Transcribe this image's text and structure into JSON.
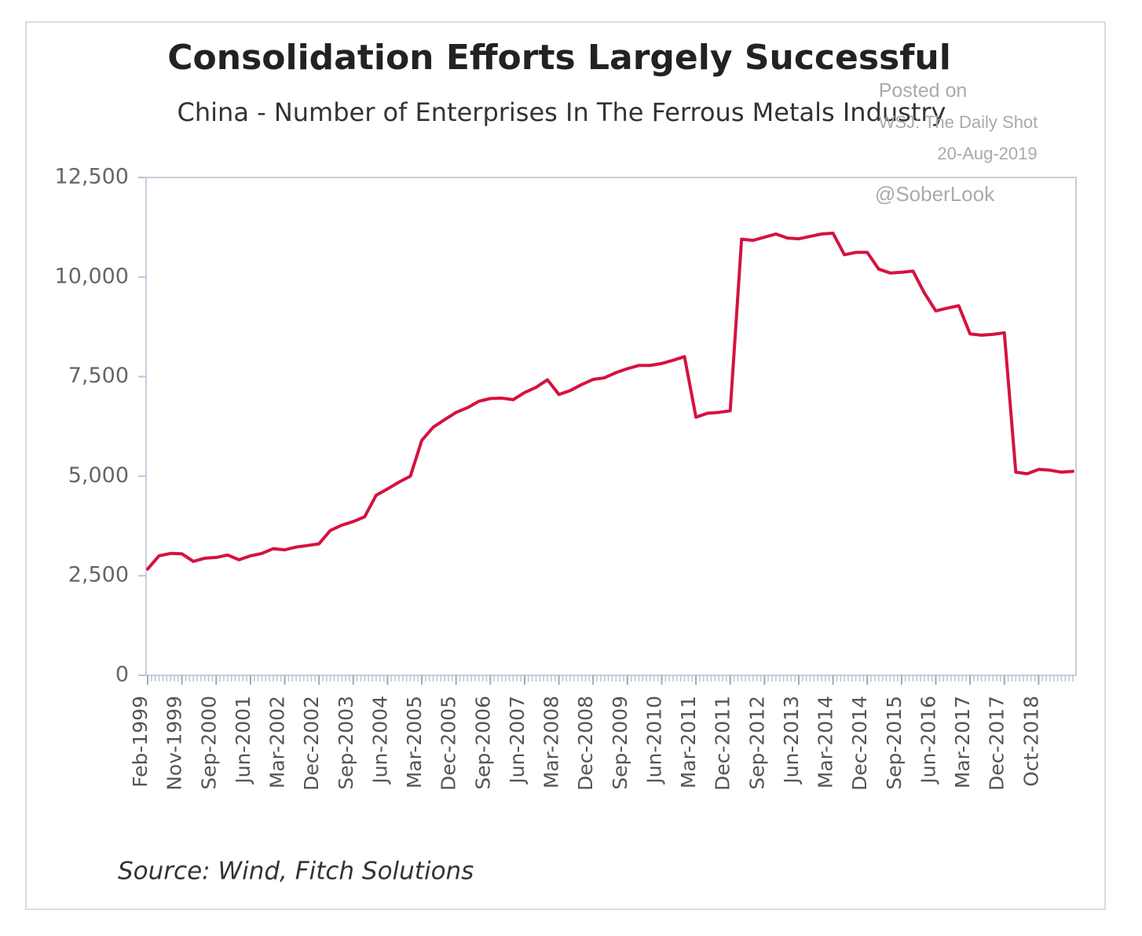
{
  "chart_data": {
    "type": "line",
    "title": "Consolidation Efforts Largely Successful",
    "subtitle": "China - Number of Enterprises In The Ferrous Metals Industry",
    "source": "Source: Wind, Fitch Solutions",
    "annotations": [
      "Posted on",
      "WSJ: The Daily Shot",
      "20-Aug-2019",
      "@SoberLook"
    ],
    "categories": [
      "Feb-1999",
      null,
      null,
      "Nov-1999",
      null,
      null,
      "Sep-2000",
      null,
      null,
      "Jun-2001",
      null,
      null,
      "Mar-2002",
      null,
      null,
      "Dec-2002",
      null,
      null,
      "Sep-2003",
      null,
      null,
      "Jun-2004",
      null,
      null,
      "Mar-2005",
      null,
      null,
      "Dec-2005",
      null,
      null,
      "Sep-2006",
      null,
      null,
      "Jun-2007",
      null,
      null,
      "Mar-2008",
      null,
      null,
      "Dec-2008",
      null,
      null,
      "Sep-2009",
      null,
      null,
      "Jun-2010",
      null,
      null,
      "Mar-2011",
      null,
      null,
      "Dec-2011",
      null,
      null,
      "Sep-2012",
      null,
      null,
      "Jun-2013",
      null,
      null,
      "Mar-2014",
      null,
      null,
      "Dec-2014",
      null,
      null,
      "Sep-2015",
      null,
      null,
      "Jun-2016",
      null,
      null,
      "Mar-2017",
      null,
      null,
      "Dec-2017",
      null,
      null,
      "Oct-2018",
      null,
      null,
      null
    ],
    "series": [
      {
        "name": "Number of Enterprises",
        "color": "#d5123f",
        "values": [
          2670,
          3000,
          3060,
          3050,
          2860,
          2940,
          2960,
          3020,
          2900,
          3000,
          3060,
          3180,
          3150,
          3220,
          3260,
          3300,
          3640,
          3770,
          3860,
          3980,
          4520,
          4680,
          4850,
          5000,
          5900,
          6230,
          6420,
          6600,
          6720,
          6880,
          6950,
          6960,
          6920,
          7100,
          7230,
          7420,
          7050,
          7150,
          7300,
          7430,
          7470,
          7600,
          7700,
          7780,
          7780,
          7830,
          7910,
          8000,
          6480,
          6580,
          6600,
          6640,
          10950,
          10920,
          11000,
          11080,
          10980,
          10960,
          11020,
          11080,
          11100,
          10560,
          10620,
          10620,
          10200,
          10100,
          10120,
          10150,
          9600,
          9150,
          9220,
          9280,
          8570,
          8540,
          8560,
          8600,
          5100,
          5060,
          5170,
          5150,
          5100,
          5120
        ]
      }
    ],
    "ylim": [
      0,
      12500
    ],
    "yticks": [
      0,
      {
        "value": 2500,
        "label": "2,500"
      },
      {
        "value": 5000,
        "label": "5,000"
      },
      {
        "value": 7500,
        "label": "7,500"
      },
      {
        "value": 10000,
        "label": "10,000"
      },
      {
        "value": 12500,
        "label": "12,500"
      }
    ],
    "grid": false
  }
}
